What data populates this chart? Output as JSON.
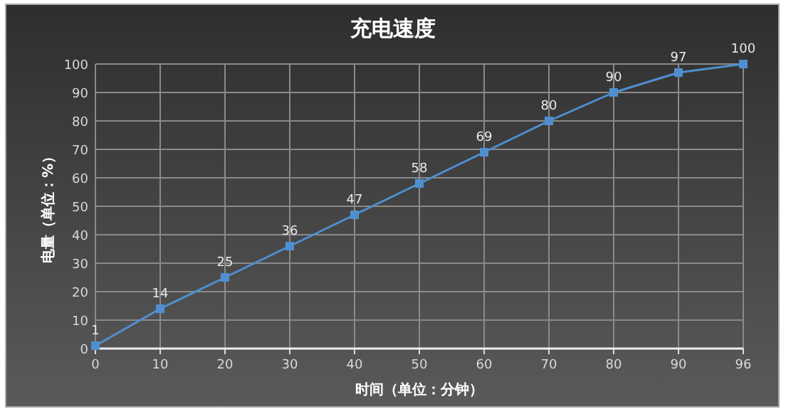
{
  "chart_data": {
    "type": "line",
    "title": "充电速度",
    "xlabel": "时间（单位：分钟）",
    "ylabel": "电量（单位：%）",
    "categories": [
      "0",
      "10",
      "20",
      "30",
      "40",
      "50",
      "60",
      "70",
      "80",
      "90",
      "96"
    ],
    "values": [
      1,
      14,
      25,
      36,
      47,
      58,
      69,
      80,
      90,
      97,
      100
    ],
    "color": "#4f8fd0",
    "ylim": [
      0,
      100
    ],
    "yticks": [
      0,
      10,
      20,
      30,
      40,
      50,
      60,
      70,
      80,
      90,
      100
    ],
    "grid": true,
    "marker": "square",
    "data_labels": true
  }
}
